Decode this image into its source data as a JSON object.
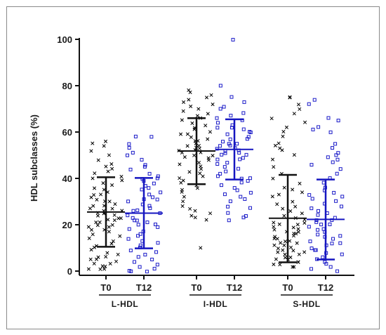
{
  "chart_data": {
    "type": "scatter",
    "title": "",
    "ylabel": "HDL subclasses (%)",
    "xlabel": "",
    "ylim": [
      0,
      100
    ],
    "yticks": [
      0,
      20,
      40,
      60,
      80,
      100
    ],
    "grid": false,
    "groups": [
      {
        "name": "L-HDL",
        "timepoints": [
          {
            "label": "T0",
            "marker": "x",
            "color": "#000000",
            "mean": 25.5,
            "sd_low": 10.5,
            "sd_high": 40.5,
            "values": [
              56,
              55,
              54,
              52,
              50,
              48,
              46,
              45,
              44,
              43,
              42,
              41,
              40,
              39,
              38,
              37,
              36,
              35,
              34,
              33,
              33,
              32,
              31,
              30,
              30,
              29,
              28,
              28,
              27,
              27,
              26,
              26,
              25,
              25,
              25,
              24,
              24,
              23,
              23,
              22,
              22,
              21,
              21,
              20,
              20,
              19,
              19,
              18,
              18,
              17,
              16,
              15,
              14,
              13,
              12,
              11,
              10,
              9,
              8,
              7,
              6,
              6,
              5,
              5,
              4,
              3,
              3,
              2,
              2,
              1,
              1,
              1
            ]
          },
          {
            "label": "T12",
            "marker": "square",
            "color": "#1a1ac8",
            "mean": 25.0,
            "sd_low": 9.8,
            "sd_high": 40.2,
            "values": [
              58,
              58,
              55,
              53,
              51,
              50,
              48,
              46,
              45,
              44,
              42,
              41,
              40,
              40,
              39,
              38,
              37,
              36,
              35,
              34,
              33,
              32,
              31,
              31,
              30,
              29,
              28,
              27,
              26,
              26,
              25,
              24,
              23,
              22,
              22,
              21,
              20,
              20,
              19,
              18,
              17,
              16,
              15,
              14,
              13,
              12,
              11,
              10,
              9,
              8,
              7,
              6,
              5,
              4,
              3,
              2,
              1,
              0,
              0,
              0
            ]
          }
        ]
      },
      {
        "name": "I-HDL",
        "timepoints": [
          {
            "label": "T0",
            "marker": "x",
            "color": "#000000",
            "mean": 51.8,
            "sd_low": 37.5,
            "sd_high": 66.0,
            "values": [
              78,
              77,
              76,
              75,
              74,
              73,
              72,
              71,
              70,
              69,
              68,
              67,
              66,
              65,
              64,
              63,
              62,
              61,
              60,
              59,
              59,
              58,
              57,
              56,
              56,
              55,
              54,
              54,
              53,
              53,
              52,
              52,
              51,
              51,
              50,
              50,
              49,
              49,
              48,
              47,
              46,
              45,
              44,
              43,
              42,
              41,
              40,
              39,
              38,
              37,
              36,
              35,
              34,
              32,
              30,
              28,
              27,
              26,
              25,
              24,
              23,
              22,
              10
            ]
          },
          {
            "label": "T12",
            "marker": "square",
            "color": "#1a1ac8",
            "mean": 52.5,
            "sd_low": 39.5,
            "sd_high": 65.5,
            "values": [
              100,
              80,
              75,
              73,
              71,
              70,
              68,
              67,
              66,
              65,
              64,
              63,
              62,
              62,
              61,
              60,
              60,
              59,
              58,
              57,
              57,
              56,
              55,
              55,
              54,
              54,
              53,
              53,
              52,
              52,
              51,
              51,
              50,
              50,
              49,
              48,
              48,
              47,
              46,
              45,
              44,
              43,
              42,
              41,
              40,
              40,
              39,
              38,
              37,
              36,
              35,
              34,
              33,
              32,
              31,
              30,
              28,
              27,
              25,
              24,
              23,
              22
            ]
          }
        ]
      },
      {
        "name": "S-HDL",
        "timepoints": [
          {
            "label": "T0",
            "marker": "x",
            "color": "#000000",
            "mean": 22.8,
            "sd_low": 3.8,
            "sd_high": 41.5,
            "values": [
              75,
              75,
              72,
              70,
              68,
              66,
              64,
              62,
              60,
              58,
              55,
              54,
              53,
              52,
              50,
              48,
              45,
              42,
              40,
              38,
              36,
              35,
              34,
              33,
              32,
              30,
              29,
              28,
              27,
              26,
              25,
              24,
              23,
              22,
              21,
              21,
              20,
              20,
              19,
              19,
              18,
              18,
              17,
              17,
              16,
              16,
              15,
              15,
              14,
              14,
              13,
              13,
              12,
              12,
              11,
              11,
              10,
              10,
              9,
              9,
              8,
              8,
              7,
              7,
              6,
              6,
              5,
              5,
              4,
              4,
              3,
              3,
              2,
              2
            ]
          },
          {
            "label": "T12",
            "marker": "square",
            "color": "#1a1ac8",
            "mean": 22.3,
            "sd_low": 5.0,
            "sd_high": 39.5,
            "values": [
              74,
              72,
              66,
              65,
              62,
              61,
              60,
              55,
              53,
              51,
              50,
              49,
              48,
              47,
              46,
              44,
              42,
              40,
              38,
              36,
              35,
              34,
              33,
              32,
              31,
              30,
              29,
              28,
              27,
              26,
              25,
              24,
              23,
              22,
              22,
              21,
              20,
              20,
              19,
              18,
              18,
              17,
              16,
              15,
              15,
              14,
              13,
              12,
              12,
              11,
              10,
              9,
              9,
              8,
              7,
              6,
              5,
              4,
              3,
              2,
              1,
              0
            ]
          }
        ]
      }
    ]
  }
}
